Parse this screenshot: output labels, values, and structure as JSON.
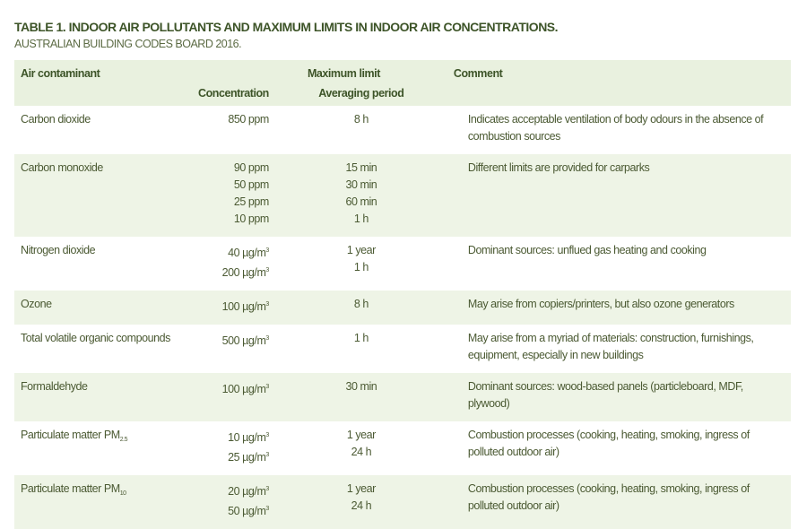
{
  "title": "TABLE 1. INDOOR AIR POLLUTANTS AND MAXIMUM LIMITS IN INDOOR AIR CONCENTRATIONS.",
  "subtitle": "AUSTRALIAN BUILDING CODES BOARD 2016.",
  "headers": {
    "contaminant": "Air contaminant",
    "max_limit": "Maximum limit",
    "comment": "Comment",
    "concentration": "Concentration",
    "averaging": "Averaging period"
  },
  "rows": [
    {
      "name": "Carbon dioxide",
      "sub": "",
      "conc": [
        "850 ppm"
      ],
      "sup": false,
      "period": [
        "8 h"
      ],
      "comment": "Indicates acceptable ventilation of body odours in the absence of combustion sources"
    },
    {
      "name": "Carbon monoxide",
      "sub": "",
      "conc": [
        "90 ppm",
        "50 ppm",
        "25 ppm",
        "10 ppm"
      ],
      "sup": false,
      "period": [
        "15 min",
        "30 min",
        "60 min",
        "1 h"
      ],
      "comment": "Different limits are provided for carparks"
    },
    {
      "name": "Nitrogen dioxide",
      "sub": "",
      "conc": [
        "40 µg/m",
        "200 µg/m"
      ],
      "sup": true,
      "period": [
        "1 year",
        "1 h"
      ],
      "comment": "Dominant sources: unflued gas heating and cooking"
    },
    {
      "name": "Ozone",
      "sub": "",
      "conc": [
        "100 µg/m"
      ],
      "sup": true,
      "period": [
        "8 h"
      ],
      "comment": "May arise from copiers/printers, but also ozone generators"
    },
    {
      "name": "Total volatile organic compounds",
      "sub": "",
      "conc": [
        "500 µg/m"
      ],
      "sup": true,
      "period": [
        "1 h"
      ],
      "comment": "May arise from a myriad of materials: construction, furnishings, equipment, especially in new buildings"
    },
    {
      "name": "Formaldehyde",
      "sub": "",
      "conc": [
        "100 µg/m"
      ],
      "sup": true,
      "period": [
        "30 min"
      ],
      "comment": "Dominant sources: wood-based panels (particleboard, MDF, plywood)"
    },
    {
      "name": "Particulate matter PM",
      "sub": "2.5",
      "conc": [
        "10 µg/m",
        "25 µg/m"
      ],
      "sup": true,
      "period": [
        "1 year",
        "24 h"
      ],
      "comment": "Combustion processes (cooking, heating, smoking, ingress of polluted outdoor air)"
    },
    {
      "name": "Particulate matter PM",
      "sub": "10",
      "conc": [
        "20 µg/m",
        "50 µg/m"
      ],
      "sup": true,
      "period": [
        "1 year",
        "24 h"
      ],
      "comment": "Combustion processes (cooking, heating, smoking, ingress of polluted outdoor air)"
    }
  ],
  "superscript": "3",
  "colors": {
    "header_band": "#e9f1df",
    "row_shade": "#eef4e6",
    "title": "#3d5428",
    "text": "#4b5a33"
  }
}
